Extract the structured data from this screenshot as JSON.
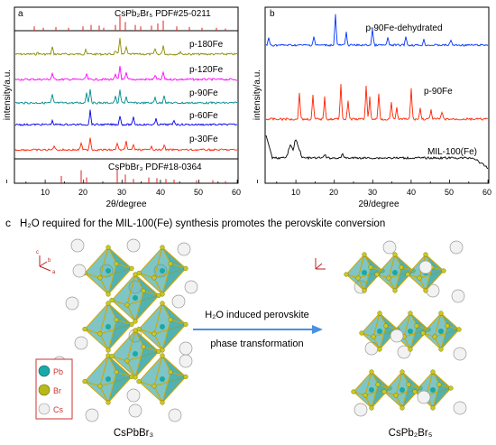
{
  "panel_a": {
    "letter": "a",
    "ref_top": "CsPb₂Br₅ PDF#25-0211",
    "ref_bottom": "CsPbBr₃ PDF#18-0364",
    "ylabel": "intensity/a.u.",
    "xlabel": "2θ/degree",
    "x_ticks": [
      "10",
      "20",
      "30",
      "40",
      "50",
      "60"
    ],
    "series": [
      {
        "name": "p-180Fe",
        "color": "#8a8a00"
      },
      {
        "name": "p-120Fe",
        "color": "#ff00ff"
      },
      {
        "name": "p-90Fe",
        "color": "#008b8b"
      },
      {
        "name": "p-60Fe",
        "color": "#0000ee"
      },
      {
        "name": "p-30Fe",
        "color": "#ff2200"
      }
    ]
  },
  "panel_b": {
    "letter": "b",
    "ylabel": "intensity/a.u.",
    "xlabel": "2θ/degree",
    "x_ticks": [
      "10",
      "20",
      "30",
      "40",
      "50",
      "60"
    ],
    "series": [
      {
        "name": "p-90Fe-dehydrated",
        "color": "#0033ff"
      },
      {
        "name": "p-90Fe",
        "color": "#ff2200"
      },
      {
        "name": "MIL-100(Fe)",
        "color": "#000000"
      }
    ]
  },
  "panel_c": {
    "letter": "c",
    "title": "H₂O required for the MIL-100(Fe) synthesis promotes the perovskite conversion",
    "arrow_line1": "H₂O induced perovskite",
    "arrow_line2": "phase transformation",
    "left_label": "CsPbBr₃",
    "right_label": "CsPb₂Br₅",
    "legend": [
      {
        "name": "Pb",
        "color": "#1aa8a8"
      },
      {
        "name": "Br",
        "color": "#b8b81a"
      },
      {
        "name": "Cs",
        "color": "#e8e8e8"
      }
    ],
    "axis_labels": {
      "c": "c",
      "b": "b",
      "a": "a"
    },
    "colors": {
      "octahedron": "#3aa6a6",
      "edge": "#d4a800",
      "arrow": "#4a90e2"
    }
  }
}
